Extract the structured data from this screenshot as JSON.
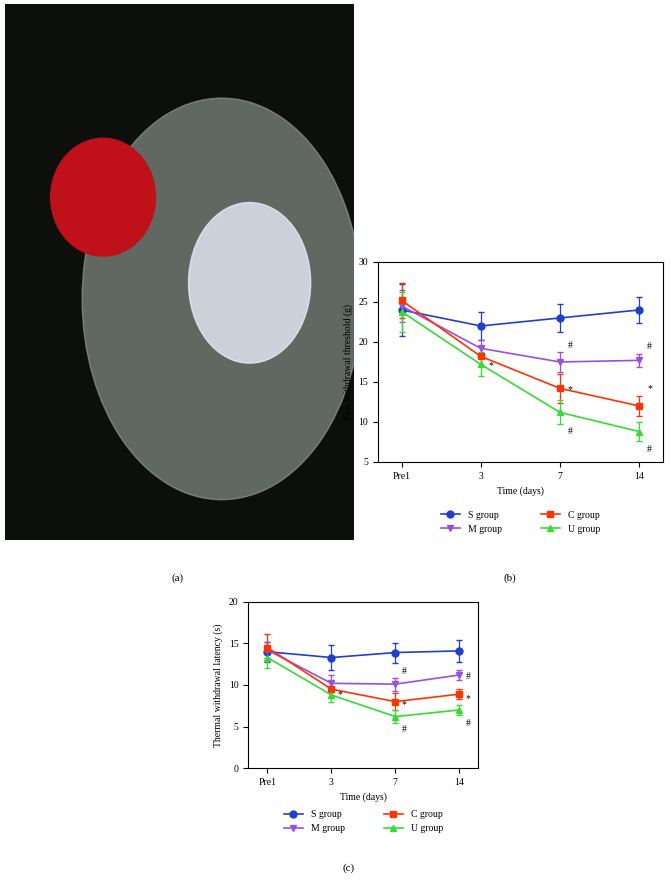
{
  "image_panel": {
    "panel_label": "(a)"
  },
  "chart_data": [
    {
      "type": "line",
      "panel_label": "(b)",
      "x_label": "Time (days)",
      "y_label": "Paw withdrawal threshold (g)",
      "categories": [
        "Pre1",
        "3",
        "7",
        "14"
      ],
      "ylim": [
        5,
        30
      ],
      "yticks": [
        5,
        10,
        15,
        20,
        25,
        30
      ],
      "legend": "bottom",
      "series": [
        {
          "name": "S group",
          "color": "#1f3fd1",
          "marker": "circle",
          "values": [
            24,
            22,
            23,
            24
          ],
          "errors": [
            3.3,
            1.8,
            1.8,
            1.6
          ]
        },
        {
          "name": "M group",
          "color": "#9b4fe0",
          "marker": "triangle_down",
          "values": [
            24.5,
            19.2,
            17.5,
            17.7
          ],
          "errors": [
            2.0,
            1.0,
            1.2,
            0.8
          ]
        },
        {
          "name": "C group",
          "color": "#ff3300",
          "marker": "square",
          "values": [
            25.2,
            18.2,
            14.2,
            12.0
          ],
          "errors": [
            2.2,
            1.2,
            1.8,
            1.2
          ]
        },
        {
          "name": "U group",
          "color": "#33dd33",
          "marker": "triangle_up",
          "values": [
            23.8,
            17.2,
            11.2,
            8.8
          ],
          "errors": [
            2.5,
            1.5,
            1.5,
            1.2
          ]
        }
      ],
      "annotations": [
        {
          "x": "3",
          "y": 17.0,
          "text": "*"
        },
        {
          "x": "7",
          "y": 19.6,
          "text": "#"
        },
        {
          "x": "7",
          "y": 14.0,
          "text": "*"
        },
        {
          "x": "7",
          "y": 8.8,
          "text": "#"
        },
        {
          "x": "14",
          "y": 19.4,
          "text": "#"
        },
        {
          "x": "14",
          "y": 14.2,
          "text": "*"
        },
        {
          "x": "14",
          "y": 6.6,
          "text": "#"
        }
      ]
    },
    {
      "type": "line",
      "panel_label": "(c)",
      "x_label": "Time (days)",
      "y_label": "Thermal withdrawal latency (s)",
      "categories": [
        "Pre1",
        "3",
        "7",
        "14"
      ],
      "ylim": [
        0,
        20
      ],
      "yticks": [
        0,
        5,
        10,
        15,
        20
      ],
      "legend": "bottom",
      "series": [
        {
          "name": "S group",
          "color": "#1f3fd1",
          "marker": "circle",
          "values": [
            14.0,
            13.3,
            13.9,
            14.1
          ],
          "errors": [
            1.2,
            1.5,
            1.2,
            1.3
          ]
        },
        {
          "name": "M group",
          "color": "#9b4fe0",
          "marker": "triangle_down",
          "values": [
            14.2,
            10.2,
            10.1,
            11.2
          ],
          "errors": [
            1.0,
            1.0,
            0.8,
            0.6
          ]
        },
        {
          "name": "C group",
          "color": "#ff3300",
          "marker": "square",
          "values": [
            14.5,
            9.5,
            8.0,
            8.9
          ],
          "errors": [
            1.6,
            1.0,
            1.0,
            0.6
          ]
        },
        {
          "name": "U group",
          "color": "#33dd33",
          "marker": "triangle_up",
          "values": [
            13.3,
            8.8,
            6.2,
            7.0
          ],
          "errors": [
            1.2,
            0.8,
            0.8,
            0.6
          ]
        }
      ],
      "annotations": [
        {
          "x": "3",
          "y": 8.8,
          "text": "*"
        },
        {
          "x": "7",
          "y": 11.6,
          "text": "#"
        },
        {
          "x": "7",
          "y": 7.6,
          "text": "*"
        },
        {
          "x": "7",
          "y": 4.6,
          "text": "#"
        },
        {
          "x": "14",
          "y": 11.0,
          "text": "#"
        },
        {
          "x": "14",
          "y": 8.4,
          "text": "*"
        },
        {
          "x": "14",
          "y": 5.4,
          "text": "#"
        }
      ]
    }
  ]
}
